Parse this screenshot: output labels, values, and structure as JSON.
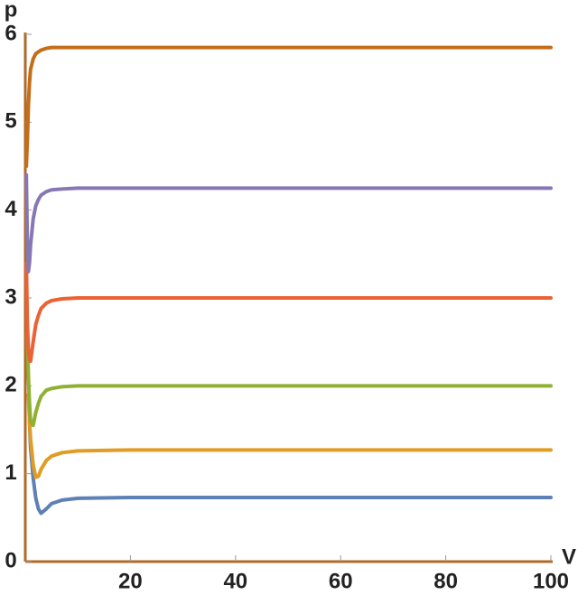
{
  "chart_data": {
    "type": "line",
    "x_label": "V",
    "y_label": "p",
    "x": [
      0.2,
      0.4,
      0.6,
      0.8,
      1,
      1.5,
      2,
      2.5,
      3,
      4,
      5,
      7,
      10,
      20,
      50,
      100
    ],
    "series": [
      {
        "color": "#5E81B5",
        "values": [
          null,
          null,
          null,
          1.6,
          1.3,
          0.95,
          0.72,
          0.6,
          0.55,
          0.6,
          0.66,
          0.7,
          0.72,
          0.73,
          0.73,
          0.73
        ]
      },
      {
        "color": "#E19C24",
        "values": [
          null,
          null,
          1.9,
          1.6,
          1.4,
          1.1,
          0.96,
          0.97,
          1.05,
          1.15,
          1.2,
          1.24,
          1.26,
          1.27,
          1.27,
          1.27
        ]
      },
      {
        "color": "#8FB032",
        "values": [
          null,
          2.6,
          2.1,
          1.8,
          1.6,
          1.55,
          1.7,
          1.8,
          1.88,
          1.95,
          1.97,
          1.99,
          2.0,
          2.0,
          2.0,
          2.0
        ]
      },
      {
        "color": "#EB6235",
        "values": [
          3.4,
          2.7,
          2.4,
          2.3,
          2.28,
          2.5,
          2.7,
          2.8,
          2.88,
          2.94,
          2.97,
          2.99,
          3.0,
          3.0,
          3.0,
          3.0
        ]
      },
      {
        "color": "#8778B3",
        "values": [
          4.4,
          3.6,
          3.3,
          3.4,
          3.6,
          3.9,
          4.05,
          4.12,
          4.17,
          4.21,
          4.23,
          4.24,
          4.25,
          4.25,
          4.25,
          4.25
        ]
      },
      {
        "color": "#C56E1A",
        "values": [
          4.5,
          4.8,
          5.2,
          5.45,
          5.6,
          5.72,
          5.78,
          5.8,
          5.82,
          5.84,
          5.85,
          5.85,
          5.85,
          5.85,
          5.85,
          5.85
        ]
      }
    ],
    "xlim": [
      0,
      100
    ],
    "ylim": [
      0,
      6
    ],
    "xticks": [
      20,
      40,
      60,
      80,
      100
    ],
    "yticks": [
      0,
      1,
      2,
      3,
      4,
      5,
      6
    ]
  }
}
